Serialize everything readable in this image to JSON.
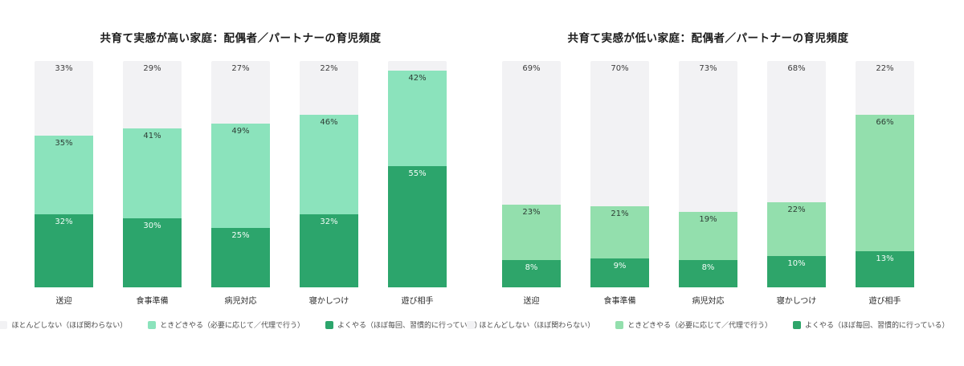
{
  "page": {
    "background": "#ffffff"
  },
  "chart_data": [
    {
      "type": "bar",
      "stacked": true,
      "orientation": "vertical",
      "title": "共育て実感が高い家庭：配偶者／パートナーの育児頻度",
      "categories": [
        "送迎",
        "食事準備",
        "病児対応",
        "寝かしつけ",
        "遊び相手"
      ],
      "ylim": [
        0,
        100
      ],
      "value_suffix": "%",
      "grid": false,
      "legend_position": "bottom",
      "series": [
        {
          "name": "ほとんどしない（ほぼ関わらない）",
          "values": [
            33,
            29,
            27,
            22,
            3
          ],
          "labels": [
            "33%",
            "29%",
            "27%",
            "22%",
            ""
          ],
          "color": "#f2f2f4",
          "text_color": "#3b3b3b"
        },
        {
          "name": "ときどきやる（必要に応じて／代理で行う）",
          "values": [
            35,
            41,
            49,
            46,
            42
          ],
          "labels": [
            "35%",
            "41%",
            "49%",
            "46%",
            "42%"
          ],
          "color": "#8be3bc",
          "text_color": "#2e3d35"
        },
        {
          "name": "よくやる（ほぼ毎回、習慣的に行っている）",
          "values": [
            32,
            30,
            25,
            32,
            55
          ],
          "labels": [
            "32%",
            "30%",
            "25%",
            "32%",
            "55%"
          ],
          "color": "#2ca56c",
          "text_color": "#f4fdf8"
        }
      ]
    },
    {
      "type": "bar",
      "stacked": true,
      "orientation": "vertical",
      "title": "共育て実感が低い家庭：配偶者／パートナーの育児頻度",
      "categories": [
        "送迎",
        "食事準備",
        "病児対応",
        "寝かしつけ",
        "遊び相手"
      ],
      "ylim": [
        0,
        100
      ],
      "value_suffix": "%",
      "grid": false,
      "legend_position": "bottom",
      "series": [
        {
          "name": "ほとんどしない（ほぼ関わらない）",
          "values": [
            69,
            70,
            73,
            68,
            22
          ],
          "labels": [
            "69%",
            "70%",
            "73%",
            "68%",
            "22%"
          ],
          "color": "#f2f2f4",
          "text_color": "#3b3b3b"
        },
        {
          "name": "ときどきやる（必要に応じて／代理で行う）",
          "values": [
            23,
            21,
            19,
            22,
            66
          ],
          "labels": [
            "23%",
            "21%",
            "19%",
            "22%",
            "66%"
          ],
          "color": "#93dfad",
          "text_color": "#2e3d35"
        },
        {
          "name": "よくやる（ほぼ毎回、習慣的に行っている）",
          "values": [
            8,
            9,
            8,
            10,
            13
          ],
          "labels": [
            "8%",
            "9%",
            "8%",
            "10%",
            "13%"
          ],
          "color": "#2ea56a",
          "text_color": "#f4fdf8"
        }
      ]
    }
  ]
}
